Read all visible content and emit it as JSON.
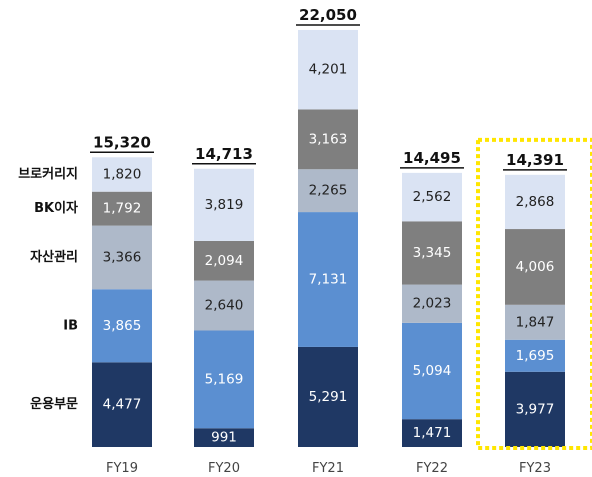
{
  "chart_data": {
    "type": "bar",
    "stacked": true,
    "categories": [
      "FY19",
      "FY20",
      "FY21",
      "FY22",
      "FY23"
    ],
    "series": [
      {
        "name": "운용부문",
        "values": [
          4477,
          991,
          5291,
          1471,
          3977
        ],
        "color": "#1f3864",
        "label_color": "#ffffff"
      },
      {
        "name": "IB",
        "values": [
          3865,
          5169,
          7131,
          5094,
          1695
        ],
        "color": "#5b8fd1",
        "label_color": "#ffffff"
      },
      {
        "name": "자산관리",
        "values": [
          3366,
          2640,
          2265,
          2023,
          1847
        ],
        "color": "#aeb9c9",
        "label_color": "#222222"
      },
      {
        "name": "BK이자",
        "values": [
          1792,
          2094,
          3163,
          3345,
          4006
        ],
        "color": "#7f7f7f",
        "label_color": "#ffffff"
      },
      {
        "name": "브로커리지",
        "values": [
          1820,
          3819,
          4201,
          2562,
          2868
        ],
        "color": "#dae3f3",
        "label_color": "#222222"
      }
    ],
    "value_labels": [
      [
        "4,477",
        "991",
        "5,291",
        "1,471",
        "3,977"
      ],
      [
        "3,865",
        "5,169",
        "7,131",
        "5,094",
        "1,695"
      ],
      [
        "3,366",
        "2,640",
        "2,265",
        "2,023",
        "1,847"
      ],
      [
        "1,792",
        "2,094",
        "3,163",
        "3,345",
        "4,006"
      ],
      [
        "1,820",
        "3,819",
        "4,201",
        "2,562",
        "2,868"
      ]
    ],
    "totals": [
      15320,
      14713,
      22050,
      14495,
      14391
    ],
    "total_labels": [
      "15,320",
      "14,713",
      "22,050",
      "14,495",
      "14,391"
    ],
    "row_labels": [
      "운용부문",
      "IB",
      "자산관리",
      "BK이자",
      "브로커리지"
    ],
    "row_label_column": "FY19",
    "highlight_category": "FY23",
    "highlight_color": "#ffe600",
    "ylim": [
      0,
      22050
    ],
    "grid": false,
    "title": "",
    "xlabel": "",
    "ylabel": ""
  }
}
